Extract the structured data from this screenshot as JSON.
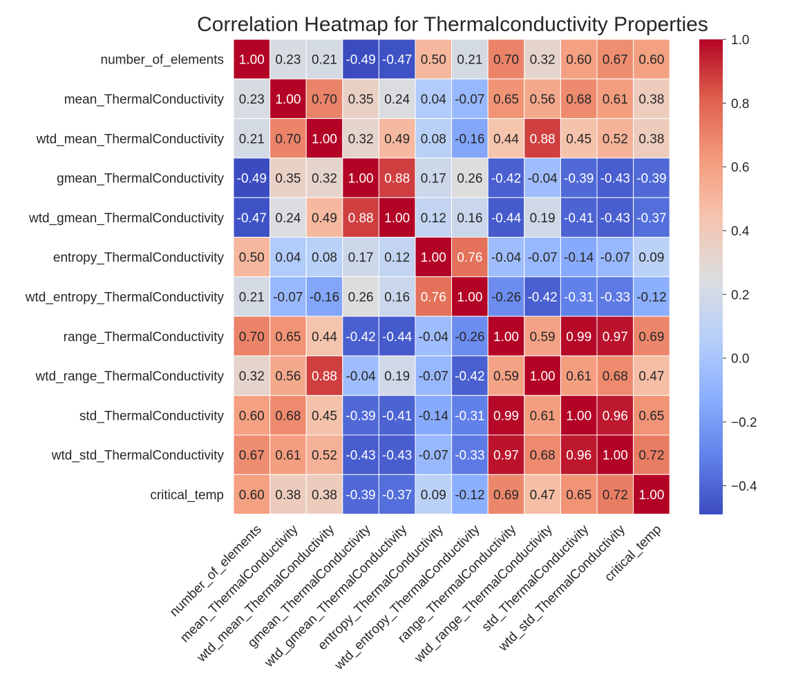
{
  "chart_data": {
    "type": "heatmap",
    "title": "Correlation Heatmap for Thermalconductivity Properties",
    "xlabel": "",
    "ylabel": "",
    "labels": [
      "number_of_elements",
      "mean_ThermalConductivity",
      "wtd_mean_ThermalConductivity",
      "gmean_ThermalConductivity",
      "wtd_gmean_ThermalConductivity",
      "entropy_ThermalConductivity",
      "wtd_entropy_ThermalConductivity",
      "range_ThermalConductivity",
      "wtd_range_ThermalConductivity",
      "std_ThermalConductivity",
      "wtd_std_ThermalConductivity",
      "critical_temp"
    ],
    "matrix": [
      [
        1.0,
        0.23,
        0.21,
        -0.49,
        -0.47,
        0.5,
        0.21,
        0.7,
        0.32,
        0.6,
        0.67,
        0.6
      ],
      [
        0.23,
        1.0,
        0.7,
        0.35,
        0.24,
        0.04,
        -0.07,
        0.65,
        0.56,
        0.68,
        0.61,
        0.38
      ],
      [
        0.21,
        0.7,
        1.0,
        0.32,
        0.49,
        0.08,
        -0.16,
        0.44,
        0.88,
        0.45,
        0.52,
        0.38
      ],
      [
        -0.49,
        0.35,
        0.32,
        1.0,
        0.88,
        0.17,
        0.26,
        -0.42,
        -0.04,
        -0.39,
        -0.43,
        -0.39
      ],
      [
        -0.47,
        0.24,
        0.49,
        0.88,
        1.0,
        0.12,
        0.16,
        -0.44,
        0.19,
        -0.41,
        -0.43,
        -0.37
      ],
      [
        0.5,
        0.04,
        0.08,
        0.17,
        0.12,
        1.0,
        0.76,
        -0.04,
        -0.07,
        -0.14,
        -0.07,
        0.09
      ],
      [
        0.21,
        -0.07,
        -0.16,
        0.26,
        0.16,
        0.76,
        1.0,
        -0.26,
        -0.42,
        -0.31,
        -0.33,
        -0.12
      ],
      [
        0.7,
        0.65,
        0.44,
        -0.42,
        -0.44,
        -0.04,
        -0.26,
        1.0,
        0.59,
        0.99,
        0.97,
        0.69
      ],
      [
        0.32,
        0.56,
        0.88,
        -0.04,
        0.19,
        -0.07,
        -0.42,
        0.59,
        1.0,
        0.61,
        0.68,
        0.47
      ],
      [
        0.6,
        0.68,
        0.45,
        -0.39,
        -0.41,
        -0.14,
        -0.31,
        0.99,
        0.61,
        1.0,
        0.96,
        0.65
      ],
      [
        0.67,
        0.61,
        0.52,
        -0.43,
        -0.43,
        -0.07,
        -0.33,
        0.97,
        0.68,
        0.96,
        1.0,
        0.72
      ],
      [
        0.6,
        0.38,
        0.38,
        -0.39,
        -0.37,
        0.09,
        -0.12,
        0.69,
        0.47,
        0.65,
        0.72,
        1.0
      ]
    ],
    "colormap": "coolwarm",
    "vmin": -0.49,
    "vmax": 1.0,
    "colorbar_ticks": [
      "1.0",
      "0.8",
      "0.6",
      "0.4",
      "0.2",
      "0.0",
      "−0.2",
      "−0.4"
    ],
    "colorbar_tick_values": [
      1.0,
      0.8,
      0.6,
      0.4,
      0.2,
      0.0,
      -0.2,
      -0.4
    ],
    "annotation_format": "0.00",
    "grid": false,
    "legend_placement": "right"
  }
}
